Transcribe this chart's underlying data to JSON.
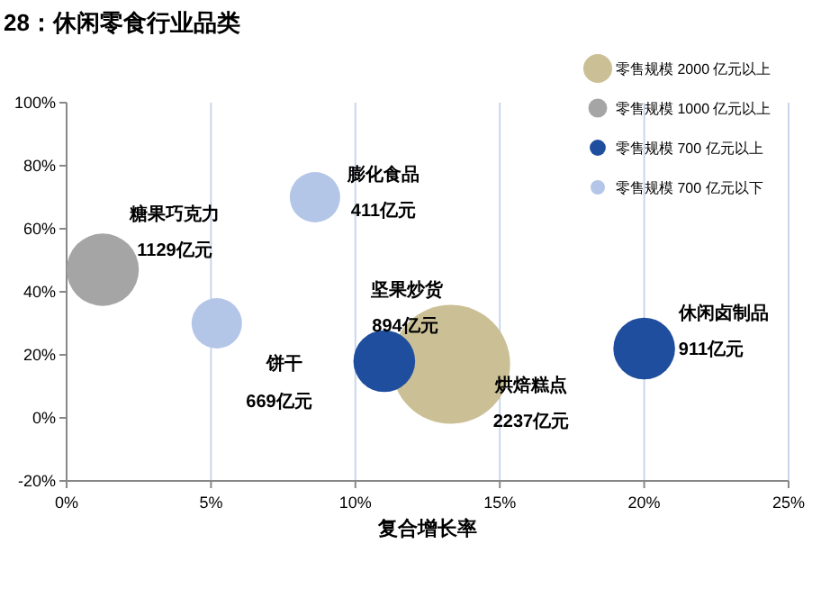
{
  "chart_data": {
    "type": "bubble",
    "title": "28：休闲零食行业品类",
    "xlabel": "复合增长率",
    "xlim": [
      0,
      25
    ],
    "ylim": [
      -20,
      100
    ],
    "xticks": [
      {
        "value": 0,
        "label": "0%"
      },
      {
        "value": 5,
        "label": "5%"
      },
      {
        "value": 10,
        "label": "10%"
      },
      {
        "value": 15,
        "label": "15%"
      },
      {
        "value": 20,
        "label": "20%"
      },
      {
        "value": 25,
        "label": "25%"
      }
    ],
    "yticks": [
      {
        "value": -20,
        "label": "-20%"
      },
      {
        "value": 0,
        "label": "0%"
      },
      {
        "value": 20,
        "label": "20%"
      },
      {
        "value": 40,
        "label": "40%"
      },
      {
        "value": 60,
        "label": "60%"
      },
      {
        "value": 80,
        "label": "80%"
      },
      {
        "value": 100,
        "label": "100%"
      }
    ],
    "grid": "x",
    "legend": "top right",
    "series": [
      {
        "name": "零售规模 2000 亿元以上",
        "color": "#cbbf96",
        "x": [
          13.3
        ],
        "values": [
          17
        ],
        "sizes": [
          1
        ]
      },
      {
        "name": "零售规模 1000 亿元以上",
        "color": "#a5a5a5",
        "x": [
          1.25
        ],
        "values": [
          47
        ],
        "sizes": [
          0.37
        ]
      },
      {
        "name": "零售规模 700 亿元以上",
        "color": "#1f4e9e",
        "x": [
          11,
          20
        ],
        "values": [
          18,
          22
        ],
        "sizes": [
          0.27,
          0.27
        ]
      },
      {
        "name": "零售规模 700 亿元以下",
        "color": "#b4c6e7",
        "x": [
          5.2,
          8.6
        ],
        "values": [
          30,
          70
        ],
        "sizes": [
          0.18,
          0.18
        ]
      }
    ],
    "annotations": [
      "糖果巧克力",
      "1129亿元",
      "饼干",
      "669亿元",
      "膨化食品",
      "411亿元",
      "坚果炒货",
      "894亿元",
      "烘焙糕点",
      "2237亿元",
      "休闲卤制品",
      "911亿元"
    ]
  }
}
